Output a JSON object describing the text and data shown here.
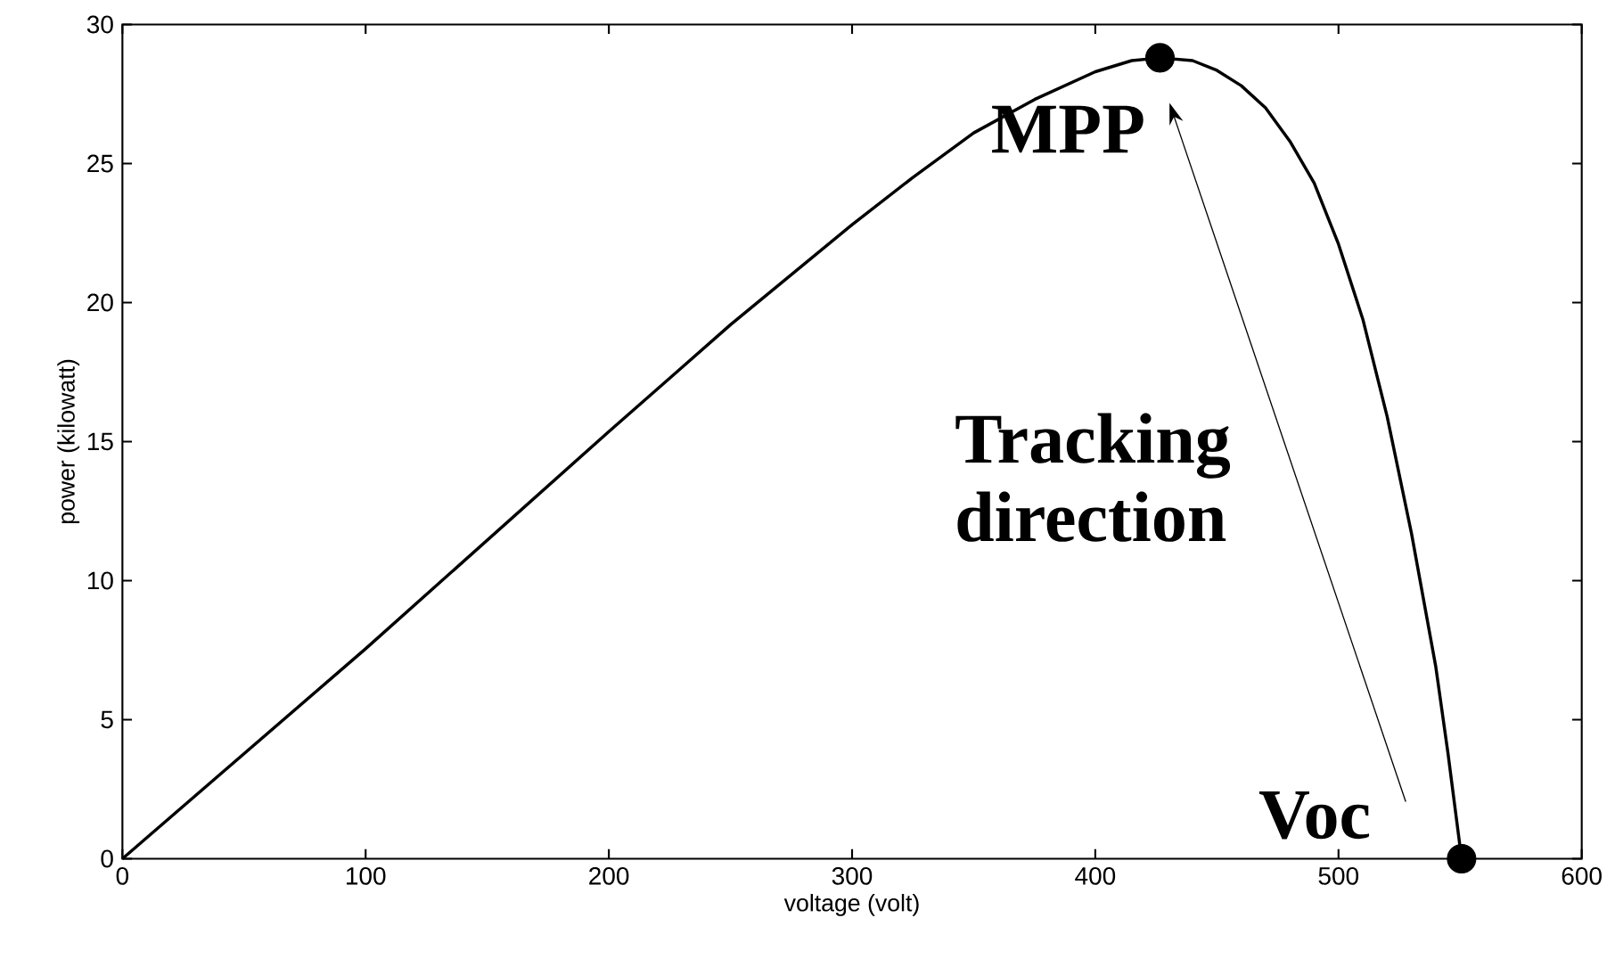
{
  "chart_data": {
    "type": "line",
    "xlabel": "voltage (volt)",
    "ylabel": "power (kilowatt)",
    "xlim": [
      0,
      600
    ],
    "ylim": [
      0,
      30
    ],
    "xticks": [
      0,
      100,
      200,
      300,
      400,
      500,
      600
    ],
    "yticks": [
      0,
      5,
      10,
      15,
      20,
      25,
      30
    ],
    "series": [
      {
        "color": "#000000",
        "marker": "none",
        "x": [
          0,
          100,
          200,
          250,
          300,
          325,
          350,
          375,
          400,
          415,
          426.6,
          440,
          450,
          460,
          470,
          480,
          490,
          500,
          510,
          520,
          530,
          540,
          545,
          550.6
        ],
        "values": [
          0,
          7.55,
          15.36,
          19.2,
          22.8,
          24.5,
          26.1,
          27.3,
          28.3,
          28.7,
          28.8,
          28.7,
          28.35,
          27.8,
          27.0,
          25.8,
          24.3,
          22.1,
          19.4,
          15.9,
          11.7,
          6.9,
          3.8,
          0
        ]
      },
      {
        "type": "scatter",
        "color": "#000000",
        "marker": "circle",
        "x": [
          426.6,
          550.6
        ],
        "values": [
          28.8,
          0
        ]
      }
    ],
    "annotations": [
      {
        "text": "MPP",
        "x": 426.6,
        "y": 28.8
      },
      {
        "text": "Voc",
        "x": 550.6,
        "y": 0
      },
      "Tracking direction"
    ]
  }
}
